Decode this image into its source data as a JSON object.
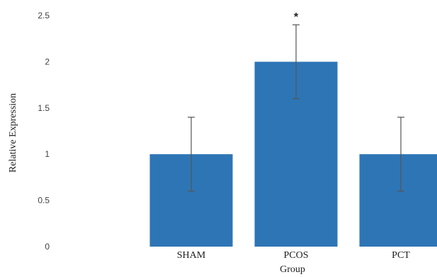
{
  "chart_data": {
    "type": "bar",
    "xlabel": "Group",
    "ylabel": "Relative Expression",
    "categories": [
      "SHAM",
      "PCOS",
      "PCT"
    ],
    "values": [
      1.0,
      2.0,
      1.0
    ],
    "error": [
      0.4,
      0.4,
      0.4
    ],
    "significance": [
      "",
      "*",
      ""
    ],
    "ylim": [
      0,
      2.5
    ],
    "yticks": [
      "0",
      "0.5",
      "1",
      "1.5",
      "2",
      "2.5"
    ],
    "grid": false,
    "bar_color": "#2e75b6",
    "error_color": "#555555"
  }
}
